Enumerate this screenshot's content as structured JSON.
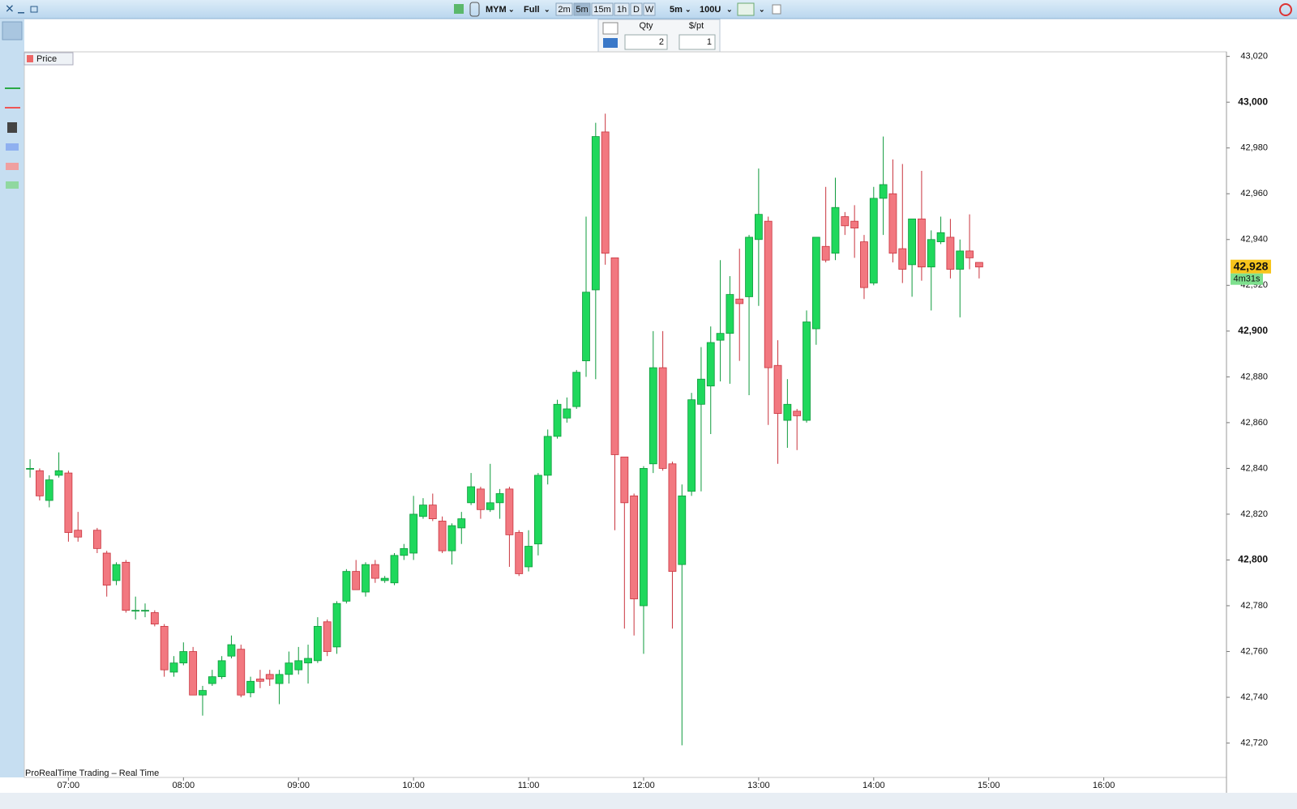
{
  "toolbar": {
    "symbol": "MYM",
    "mode": "Full",
    "timeframes": [
      "2m",
      "5m",
      "15m",
      "1h",
      "D",
      "W"
    ],
    "interval": "5m",
    "units": "100U"
  },
  "order_panel": {
    "qty_label": "Qty",
    "pt_label": "$/pt",
    "qty": 2,
    "pt": 1
  },
  "chart_data": {
    "type": "candlestick",
    "legend": "Price",
    "footer": "ProRealTime Trading – Real Time",
    "up_color": "#1fd85c",
    "down_color": "#f27880",
    "x": [
      400,
      405,
      410,
      415,
      420,
      425,
      435,
      440,
      445,
      450,
      455,
      460,
      465,
      470,
      475,
      480,
      485,
      490,
      495,
      500,
      505,
      510,
      515,
      520,
      525,
      530,
      535,
      540,
      545,
      550,
      555,
      560,
      565,
      570,
      575,
      580,
      585,
      590,
      595,
      600,
      605,
      610,
      615,
      620,
      625,
      630,
      635,
      640,
      645,
      650,
      655,
      660,
      665,
      670,
      675,
      680,
      685,
      690,
      695,
      700,
      705,
      710,
      715,
      720,
      725,
      730,
      735,
      740,
      745,
      750,
      755,
      760,
      765,
      770,
      775,
      780,
      785,
      790,
      795,
      800,
      805,
      810,
      815,
      820,
      825,
      830,
      835,
      840,
      845,
      850,
      855,
      860,
      865,
      870,
      875,
      880,
      885,
      890,
      895
    ],
    "open": [
      42840,
      42839,
      42826,
      42837,
      42838,
      42813,
      42813,
      42803,
      42791,
      42799,
      42778,
      42778,
      42777,
      42771,
      42751,
      42755,
      42760,
      42741,
      42746,
      42749,
      42758,
      42761,
      42742,
      42748,
      42750,
      42746,
      42750,
      42752,
      42755,
      42756,
      42773,
      42762,
      42782,
      42795,
      42786,
      42798,
      42791,
      42790,
      42802,
      42803,
      42819,
      42824,
      42817,
      42804,
      42814,
      42825,
      42831,
      42822,
      42825,
      42831,
      42812,
      42797,
      42807,
      42837,
      42854,
      42862,
      42867,
      42887,
      42918,
      42987,
      42932,
      42845,
      42828,
      42780,
      42842,
      42884,
      42842,
      42798,
      42830,
      42868,
      42876,
      42896,
      42899,
      42914,
      42915,
      42940,
      42948,
      42885,
      42861,
      42865,
      42861,
      42901,
      42937,
      42934,
      42950,
      42948,
      42939,
      42921,
      42958,
      42960,
      42936,
      42929,
      42949,
      42928,
      42939,
      42941,
      42927,
      42935,
      42930
    ],
    "high": [
      42844,
      42840,
      42837,
      42847,
      42839,
      42821,
      42814,
      42804,
      42799,
      42800,
      42784,
      42781,
      42778,
      42772,
      42758,
      42764,
      42762,
      42745,
      42752,
      42758,
      42767,
      42763,
      42749,
      42752,
      42752,
      42752,
      42760,
      42762,
      42763,
      42775,
      42774,
      42782,
      42796,
      42800,
      42799,
      42800,
      42793,
      42803,
      42807,
      42828,
      42827,
      42829,
      42819,
      42816,
      42821,
      42838,
      42832,
      42842,
      42831,
      42832,
      42813,
      42813,
      42838,
      42857,
      42870,
      42871,
      42883,
      42950,
      42991,
      42995,
      42932,
      42845,
      42829,
      42841,
      42900,
      42900,
      42843,
      42833,
      42873,
      42893,
      42902,
      42931,
      42924,
      42936,
      42942,
      42971,
      42950,
      42896,
      42879,
      42866,
      42909,
      42941,
      42963,
      42967,
      42952,
      42955,
      42942,
      42963,
      42985,
      42975,
      42973,
      42949,
      42970,
      42944,
      42950,
      42949,
      42940,
      42951,
      42930
    ],
    "low": [
      42836,
      42826,
      42823,
      42836,
      42808,
      42808,
      42803,
      42784,
      42789,
      42777,
      42774,
      42775,
      42771,
      42749,
      42749,
      42754,
      42741,
      42732,
      42745,
      42748,
      42757,
      42740,
      42740,
      42744,
      42745,
      42737,
      42746,
      42750,
      42746,
      42755,
      42758,
      42759,
      42781,
      42787,
      42784,
      42790,
      42790,
      42789,
      42800,
      42800,
      42818,
      42817,
      42803,
      42798,
      42807,
      42824,
      42818,
      42821,
      42818,
      42797,
      42793,
      42795,
      42802,
      42833,
      42853,
      42860,
      42866,
      42880,
      42879,
      42929,
      42813,
      42770,
      42767,
      42759,
      42838,
      42839,
      42770,
      42719,
      42828,
      42830,
      42855,
      42878,
      42877,
      42887,
      42872,
      42911,
      42859,
      42842,
      42849,
      42848,
      42860,
      42894,
      42930,
      42931,
      42942,
      42932,
      42914,
      42920,
      42942,
      42930,
      42921,
      42915,
      42922,
      42909,
      42938,
      42923,
      42906,
      42927,
      42923
    ],
    "close": [
      42840,
      42828,
      42835,
      42839,
      42812,
      42810,
      42805,
      42789,
      42798,
      42778,
      42778,
      42778,
      42772,
      42752,
      42755,
      42760,
      42741,
      42743,
      42749,
      42756,
      42763,
      42741,
      42747,
      42747,
      42748,
      42750,
      42755,
      42756,
      42757,
      42771,
      42760,
      42781,
      42795,
      42787,
      42798,
      42792,
      42792,
      42802,
      42805,
      42820,
      42824,
      42818,
      42804,
      42815,
      42818,
      42832,
      42822,
      42825,
      42829,
      42811,
      42794,
      42806,
      42837,
      42854,
      42868,
      42866,
      42882,
      42917,
      42985,
      42934,
      42846,
      42825,
      42783,
      42840,
      42884,
      42840,
      42795,
      42828,
      42870,
      42879,
      42895,
      42899,
      42916,
      42912,
      42941,
      42951,
      42884,
      42864,
      42868,
      42863,
      42904,
      42941,
      42931,
      42954,
      42946,
      42945,
      42919,
      42958,
      42964,
      42934,
      42927,
      42949,
      42928,
      42940,
      42943,
      42927,
      42935,
      42932,
      42928
    ],
    "xlim": [
      397,
      1024
    ],
    "ylim": [
      42705,
      43022
    ],
    "xticks": [
      {
        "value": 420,
        "label": "07:00"
      },
      {
        "value": 480,
        "label": "08:00"
      },
      {
        "value": 540,
        "label": "09:00"
      },
      {
        "value": 600,
        "label": "10:00"
      },
      {
        "value": 660,
        "label": "11:00"
      },
      {
        "value": 720,
        "label": "12:00"
      },
      {
        "value": 780,
        "label": "13:00"
      },
      {
        "value": 840,
        "label": "14:00"
      },
      {
        "value": 900,
        "label": "15:00"
      },
      {
        "value": 960,
        "label": "16:00"
      }
    ],
    "yticks": [
      {
        "value": 42720,
        "label": "42,720"
      },
      {
        "value": 42740,
        "label": "42,740"
      },
      {
        "value": 42760,
        "label": "42,760"
      },
      {
        "value": 42780,
        "label": "42,780"
      },
      {
        "value": 42800,
        "label": "42,800"
      },
      {
        "value": 42820,
        "label": "42,820"
      },
      {
        "value": 42840,
        "label": "42,840"
      },
      {
        "value": 42860,
        "label": "42,860"
      },
      {
        "value": 42880,
        "label": "42,880"
      },
      {
        "value": 42900,
        "label": "42,900"
      },
      {
        "value": 42920,
        "label": "42,920"
      },
      {
        "value": 42940,
        "label": "42,940"
      },
      {
        "value": 42960,
        "label": "42,960"
      },
      {
        "value": 42980,
        "label": "42,980"
      },
      {
        "value": 43000,
        "label": "43,000"
      },
      {
        "value": 43020,
        "label": "43,020"
      }
    ],
    "last_price": {
      "value": 42928,
      "label": "42,928"
    },
    "countdown": "4m31s"
  }
}
